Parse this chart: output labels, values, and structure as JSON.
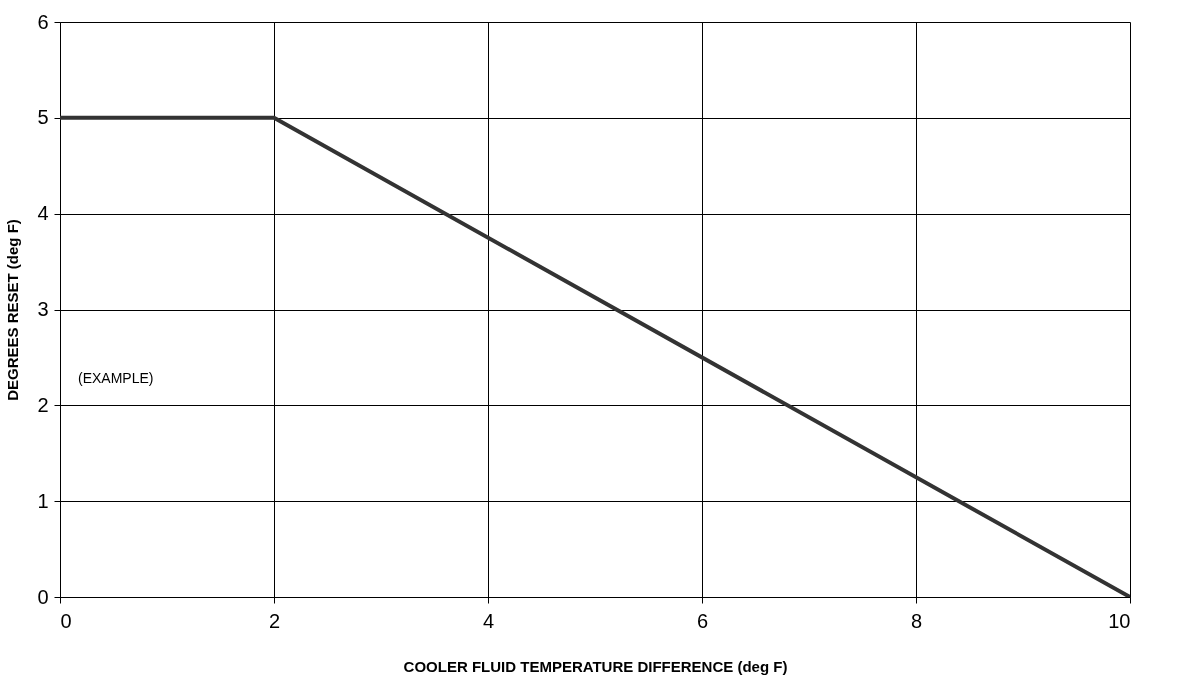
{
  "chart_data": {
    "type": "line",
    "xlabel": "COOLER FLUID TEMPERATURE DIFFERENCE (deg F)",
    "ylabel": "DEGREES RESET (deg F)",
    "x": [
      0,
      2,
      10
    ],
    "series": [
      {
        "color": "#333333",
        "values": [
          5,
          5,
          0
        ]
      }
    ],
    "xlim": [
      0,
      10
    ],
    "xticks": [
      0,
      2,
      4,
      6,
      8,
      10
    ],
    "ylim": [
      0,
      6
    ],
    "yticks": [
      0,
      1,
      2,
      3,
      4,
      5,
      6
    ],
    "grid": true,
    "legend": false,
    "marker": "none",
    "line_style": "solid",
    "annotations": [
      "(EXAMPLE)"
    ]
  }
}
